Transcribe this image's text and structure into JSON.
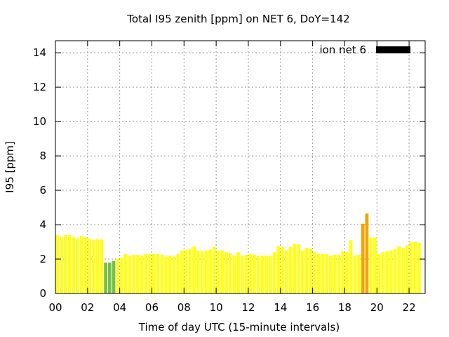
{
  "chart_data": {
    "type": "bar",
    "title": "Total I95 zenith [ppm] on NET 6, DoY=142",
    "xlabel": "Time of day UTC (15-minute intervals)",
    "ylabel": "I95 [ppm]",
    "xlim": [
      0,
      23
    ],
    "ylim": [
      0,
      14.7
    ],
    "xticks": [
      "00",
      "02",
      "04",
      "06",
      "08",
      "10",
      "12",
      "14",
      "16",
      "18",
      "20",
      "22"
    ],
    "yticks": [
      "0",
      "2",
      "4",
      "6",
      "8",
      "10",
      "12",
      "14"
    ],
    "grid": true,
    "legend": {
      "position": "top-right",
      "entries": [
        {
          "label": "ion net 6",
          "color": "#000000"
        }
      ]
    },
    "interval_hours": 0.25,
    "values": [
      3.4,
      3.3,
      3.4,
      3.4,
      3.3,
      3.2,
      3.35,
      3.25,
      3.2,
      3.1,
      3.15,
      3.15,
      1.8,
      1.8,
      1.9,
      2.05,
      2.1,
      2.3,
      2.2,
      2.25,
      2.25,
      2.2,
      2.3,
      2.3,
      2.3,
      2.3,
      2.25,
      2.15,
      2.2,
      2.15,
      2.3,
      2.5,
      2.55,
      2.6,
      2.75,
      2.5,
      2.45,
      2.5,
      2.55,
      2.7,
      2.5,
      2.5,
      2.4,
      2.35,
      2.2,
      2.4,
      2.2,
      2.25,
      2.3,
      2.25,
      2.2,
      2.2,
      2.2,
      2.2,
      2.4,
      2.75,
      2.7,
      2.5,
      2.7,
      2.9,
      2.85,
      2.5,
      2.65,
      2.6,
      2.4,
      2.3,
      2.3,
      2.3,
      2.2,
      2.25,
      2.25,
      2.45,
      2.4,
      3.1,
      2.2,
      2.25,
      4.05,
      4.65,
      3.25,
      3.25,
      2.3,
      2.4,
      2.45,
      2.5,
      2.6,
      2.75,
      2.65,
      2.8,
      3.0,
      3.0,
      2.95
    ],
    "colors": {
      "low": "#76c043",
      "normal": "#ffff1a",
      "elevated": "#f5a300",
      "legend": "#000000",
      "axis": "#000000",
      "grid": "#9e9e9e"
    },
    "thresholds": {
      "low_below": 2.0,
      "elevated_above": 3.5
    }
  }
}
